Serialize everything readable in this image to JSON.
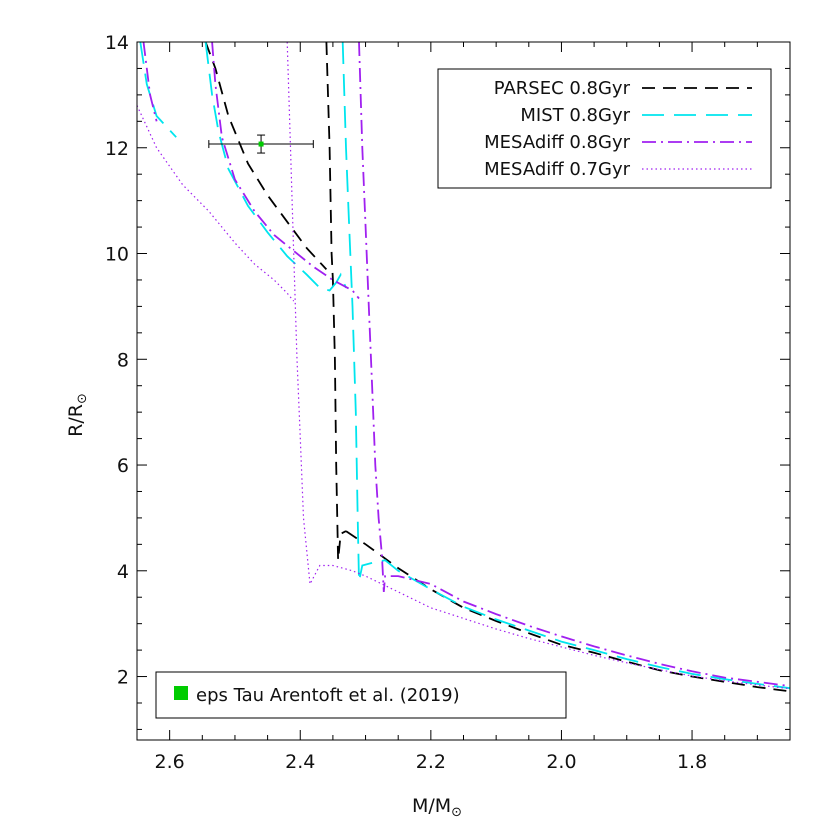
{
  "chart_data": {
    "type": "line",
    "xlabel": "M/M",
    "xlabel_sub": "⊙",
    "ylabel": "R/R",
    "ylabel_sub": "⊙",
    "xlim": [
      2.65,
      1.65
    ],
    "ylim": [
      0.8,
      14.0
    ],
    "x_ticks": [
      "2.6",
      "2.4",
      "2.2",
      "2.0",
      "1.8"
    ],
    "y_ticks": [
      "2",
      "4",
      "6",
      "8",
      "10",
      "12",
      "14"
    ],
    "grid": false,
    "legend_placement": "top-right",
    "series": [
      {
        "name": "PARSEC 0.8Gyr",
        "color": "#000000",
        "dash": "long-dash",
        "segments": [
          [
            [
              2.545,
              14.0
            ],
            [
              2.53,
              13.5
            ],
            [
              2.51,
              12.6
            ],
            [
              2.48,
              11.7
            ],
            [
              2.45,
              11.1
            ],
            [
              2.42,
              10.6
            ],
            [
              2.39,
              10.1
            ],
            [
              2.36,
              9.7
            ]
          ],
          [
            [
              2.36,
              14.0
            ],
            [
              2.355,
              12.0
            ],
            [
              2.352,
              10.0
            ],
            [
              2.35,
              9.5
            ],
            [
              2.347,
              8.0
            ],
            [
              2.345,
              6.0
            ],
            [
              2.342,
              4.2
            ],
            [
              2.338,
              4.7
            ],
            [
              2.33,
              4.75
            ]
          ],
          [
            [
              2.33,
              4.75
            ],
            [
              2.3,
              4.5
            ],
            [
              2.25,
              4.05
            ],
            [
              2.2,
              3.65
            ],
            [
              2.15,
              3.3
            ],
            [
              2.1,
              3.05
            ],
            [
              2.05,
              2.82
            ],
            [
              2.0,
              2.6
            ],
            [
              1.95,
              2.45
            ],
            [
              1.9,
              2.28
            ],
            [
              1.85,
              2.12
            ],
            [
              1.8,
              2.0
            ],
            [
              1.75,
              1.9
            ],
            [
              1.7,
              1.8
            ],
            [
              1.65,
              1.72
            ]
          ]
        ]
      },
      {
        "name": "MIST 0.8Gyr",
        "color": "#00e5ee",
        "dash": "long-dash-wide",
        "segments": [
          [
            [
              2.645,
              14.0
            ],
            [
              2.635,
              13.2
            ],
            [
              2.62,
              12.6
            ],
            [
              2.59,
              12.2
            ]
          ],
          [
            [
              2.545,
              14.0
            ],
            [
              2.535,
              13.0
            ],
            [
              2.525,
              12.3
            ],
            [
              2.51,
              11.6
            ],
            [
              2.48,
              10.9
            ],
            [
              2.45,
              10.4
            ],
            [
              2.42,
              9.95
            ],
            [
              2.39,
              9.6
            ],
            [
              2.37,
              9.35
            ],
            [
              2.355,
              9.3
            ],
            [
              2.345,
              9.45
            ],
            [
              2.338,
              9.6
            ],
            [
              2.33,
              9.35
            ]
          ],
          [
            [
              2.335,
              14.0
            ],
            [
              2.33,
              12.0
            ],
            [
              2.325,
              10.5
            ],
            [
              2.32,
              9.0
            ],
            [
              2.315,
              7.0
            ],
            [
              2.312,
              5.0
            ],
            [
              2.31,
              3.8
            ],
            [
              2.305,
              4.1
            ],
            [
              2.29,
              4.15
            ],
            [
              2.27,
              4.2
            ],
            [
              2.25,
              4.0
            ],
            [
              2.2,
              3.65
            ],
            [
              2.15,
              3.32
            ],
            [
              2.1,
              3.08
            ],
            [
              2.05,
              2.87
            ],
            [
              2.0,
              2.66
            ],
            [
              1.95,
              2.5
            ],
            [
              1.9,
              2.33
            ],
            [
              1.85,
              2.18
            ],
            [
              1.8,
              2.05
            ],
            [
              1.75,
              1.95
            ],
            [
              1.7,
              1.86
            ],
            [
              1.65,
              1.78
            ]
          ]
        ]
      },
      {
        "name": "MESAdiff 0.8Gyr",
        "color": "#a020f0",
        "dash": "dash-dot",
        "segments": [
          [
            [
              2.64,
              14.0
            ],
            [
              2.63,
              13.0
            ],
            [
              2.62,
              12.5
            ]
          ],
          [
            [
              2.535,
              14.0
            ],
            [
              2.53,
              13.2
            ],
            [
              2.52,
              12.2
            ],
            [
              2.5,
              11.4
            ],
            [
              2.47,
              10.8
            ],
            [
              2.44,
              10.35
            ],
            [
              2.41,
              10.05
            ],
            [
              2.38,
              9.75
            ],
            [
              2.35,
              9.5
            ],
            [
              2.32,
              9.3
            ],
            [
              2.31,
              9.15
            ]
          ],
          [
            [
              2.31,
              14.0
            ],
            [
              2.305,
              12.0
            ],
            [
              2.3,
              10.5
            ],
            [
              2.295,
              9.0
            ],
            [
              2.29,
              7.5
            ],
            [
              2.285,
              6.0
            ],
            [
              2.28,
              5.0
            ],
            [
              2.275,
              4.3
            ],
            [
              2.272,
              3.6
            ],
            [
              2.27,
              3.9
            ],
            [
              2.25,
              3.9
            ],
            [
              2.2,
              3.75
            ],
            [
              2.15,
              3.42
            ],
            [
              2.1,
              3.18
            ],
            [
              2.05,
              2.96
            ],
            [
              2.0,
              2.76
            ],
            [
              1.95,
              2.57
            ],
            [
              1.9,
              2.4
            ],
            [
              1.85,
              2.24
            ],
            [
              1.8,
              2.1
            ],
            [
              1.75,
              1.98
            ],
            [
              1.7,
              1.9
            ],
            [
              1.65,
              1.82
            ]
          ]
        ]
      },
      {
        "name": "MESAdiff 0.7Gyr",
        "color": "#a020f0",
        "dash": "dotted",
        "segments": [
          [
            [
              2.65,
              12.8
            ],
            [
              2.62,
              12.0
            ],
            [
              2.58,
              11.3
            ],
            [
              2.54,
              10.8
            ],
            [
              2.5,
              10.2
            ],
            [
              2.47,
              9.8
            ],
            [
              2.44,
              9.5
            ],
            [
              2.42,
              9.25
            ],
            [
              2.41,
              9.1
            ]
          ],
          [
            [
              2.42,
              14.0
            ],
            [
              2.415,
              12.0
            ],
            [
              2.41,
              10.0
            ],
            [
              2.405,
              8.0
            ],
            [
              2.4,
              6.5
            ],
            [
              2.395,
              5.0
            ],
            [
              2.385,
              3.75
            ],
            [
              2.37,
              4.1
            ],
            [
              2.35,
              4.1
            ],
            [
              2.32,
              4.0
            ],
            [
              2.3,
              3.9
            ],
            [
              2.25,
              3.6
            ],
            [
              2.2,
              3.3
            ],
            [
              2.15,
              3.1
            ],
            [
              2.1,
              2.9
            ],
            [
              2.05,
              2.72
            ],
            [
              2.0,
              2.56
            ],
            [
              1.95,
              2.4
            ],
            [
              1.9,
              2.26
            ],
            [
              1.85,
              2.13
            ],
            [
              1.8,
              2.01
            ],
            [
              1.75,
              1.92
            ],
            [
              1.7,
              1.84
            ],
            [
              1.65,
              1.77
            ]
          ]
        ]
      }
    ],
    "observation": {
      "label": "eps Tau Arentoft et al. (2019)",
      "color": "#00cc00",
      "x": 2.46,
      "y": 12.07,
      "x_err": [
        2.54,
        2.38
      ],
      "y_err": [
        11.9,
        12.24
      ]
    }
  }
}
